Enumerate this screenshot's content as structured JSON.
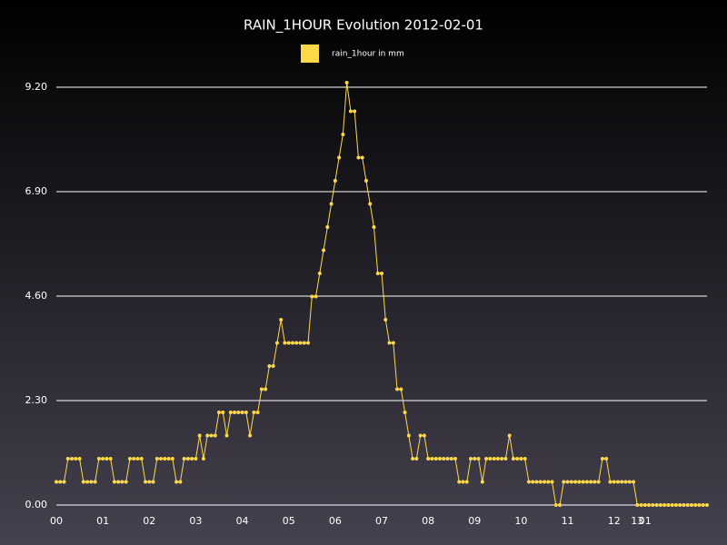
{
  "chart_data": {
    "type": "line",
    "title": "RAIN_1HOUR Evolution 2012-02-01",
    "categories": [
      "00",
      null,
      null,
      null,
      null,
      null,
      null,
      null,
      null,
      null,
      null,
      null,
      "01",
      null,
      null,
      null,
      null,
      null,
      null,
      null,
      null,
      null,
      null,
      null,
      "02",
      null,
      null,
      null,
      null,
      null,
      null,
      null,
      null,
      null,
      null,
      null,
      "03",
      null,
      null,
      null,
      null,
      null,
      null,
      null,
      null,
      null,
      null,
      null,
      "04",
      null,
      null,
      null,
      null,
      null,
      null,
      null,
      null,
      null,
      null,
      null,
      "05",
      null,
      null,
      null,
      null,
      null,
      null,
      null,
      null,
      null,
      null,
      null,
      "06",
      null,
      null,
      null,
      null,
      null,
      null,
      null,
      null,
      null,
      null,
      null,
      "07",
      null,
      null,
      null,
      null,
      null,
      null,
      null,
      null,
      null,
      null,
      null,
      "08",
      null,
      null,
      null,
      null,
      null,
      null,
      null,
      null,
      null,
      null,
      null,
      "09",
      null,
      null,
      null,
      null,
      null,
      null,
      null,
      null,
      null,
      null,
      null,
      "10",
      null,
      null,
      null,
      null,
      null,
      null,
      null,
      null,
      null,
      null,
      null,
      "11",
      null,
      null,
      null,
      null,
      null,
      null,
      null,
      null,
      null,
      null,
      null,
      "12",
      null,
      null,
      null,
      null,
      null,
      "13",
      null,
      "01",
      null,
      null,
      null,
      null,
      null,
      null,
      null,
      null,
      null,
      null,
      null,
      null,
      null,
      null,
      null,
      null
    ],
    "series": [
      {
        "name": "rain_1hour in mm",
        "color": "#ffd84a",
        "values": [
          0.51,
          0.51,
          0.51,
          1.02,
          1.02,
          1.02,
          1.02,
          0.51,
          0.51,
          0.51,
          0.51,
          1.02,
          1.02,
          1.02,
          1.02,
          0.51,
          0.51,
          0.51,
          0.51,
          1.02,
          1.02,
          1.02,
          1.02,
          0.51,
          0.51,
          0.51,
          1.02,
          1.02,
          1.02,
          1.02,
          1.02,
          0.51,
          0.51,
          1.02,
          1.02,
          1.02,
          1.02,
          1.53,
          1.02,
          1.53,
          1.53,
          1.53,
          2.04,
          2.04,
          1.53,
          2.04,
          2.04,
          2.04,
          2.04,
          2.04,
          1.53,
          2.04,
          2.04,
          2.55,
          2.55,
          3.06,
          3.06,
          3.57,
          4.08,
          3.57,
          3.57,
          3.57,
          3.57,
          3.57,
          3.57,
          3.57,
          4.59,
          4.59,
          5.1,
          5.61,
          6.12,
          6.63,
          7.14,
          7.65,
          8.16,
          9.3,
          8.67,
          8.67,
          7.65,
          7.65,
          7.14,
          6.63,
          6.12,
          5.1,
          5.1,
          4.08,
          3.57,
          3.57,
          2.55,
          2.55,
          2.04,
          1.53,
          1.02,
          1.02,
          1.53,
          1.53,
          1.02,
          1.02,
          1.02,
          1.02,
          1.02,
          1.02,
          1.02,
          1.02,
          0.51,
          0.51,
          0.51,
          1.02,
          1.02,
          1.02,
          0.51,
          1.02,
          1.02,
          1.02,
          1.02,
          1.02,
          1.02,
          1.53,
          1.02,
          1.02,
          1.02,
          1.02,
          0.51,
          0.51,
          0.51,
          0.51,
          0.51,
          0.51,
          0.51,
          0,
          0,
          0.51,
          0.51,
          0.51,
          0.51,
          0.51,
          0.51,
          0.51,
          0.51,
          0.51,
          0.51,
          1.02,
          1.02,
          0.51,
          0.51,
          0.51,
          0.51,
          0.51,
          0.51,
          0.51,
          0,
          0,
          0,
          0,
          0,
          0,
          0,
          0,
          0,
          0,
          0,
          0,
          0,
          0,
          0,
          0,
          0,
          0,
          0
        ]
      }
    ],
    "ylim": [
      0,
      9.2
    ],
    "yticks": [
      {
        "value": 0,
        "label": "0.00"
      },
      {
        "value": 2.3,
        "label": "2.30"
      },
      {
        "value": 4.6,
        "label": "4.60"
      },
      {
        "value": 6.9,
        "label": "6.90"
      },
      {
        "value": 9.2,
        "label": "9.20"
      }
    ],
    "grid": true
  }
}
